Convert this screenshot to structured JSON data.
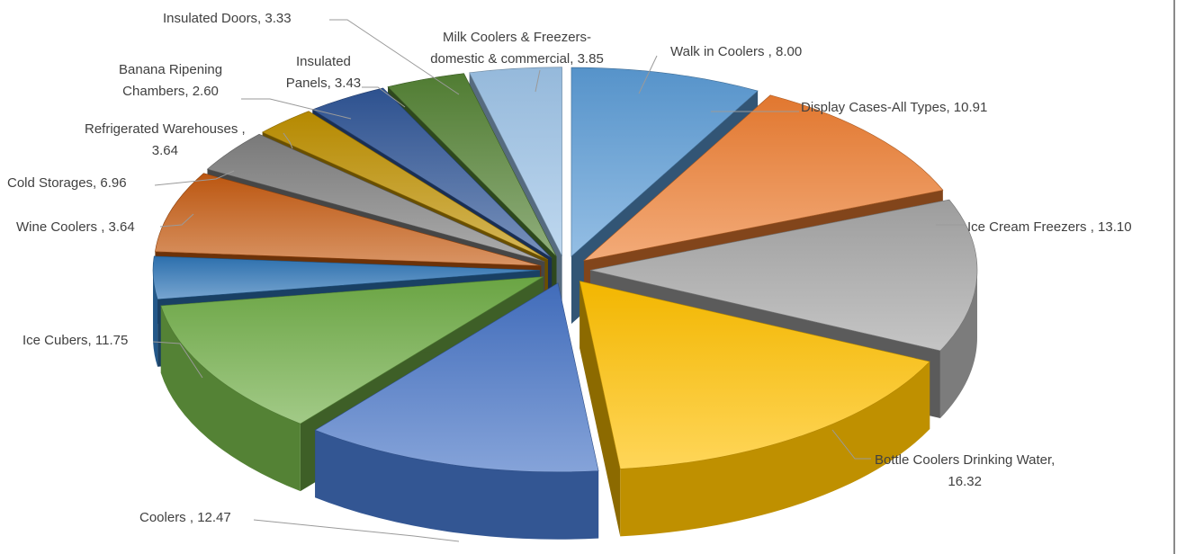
{
  "chart_data": {
    "type": "pie",
    "variant": "3d-exploded",
    "title": "",
    "legend": "none",
    "slices": [
      {
        "category": "Walk in Coolers  ",
        "value": 8.0,
        "label_lines": [
          "Walk in Coolers  , 8.00"
        ],
        "color": "#5B9BD5"
      },
      {
        "category": "Display Cases-All Types",
        "value": 10.91,
        "label_lines": [
          "Display Cases-All Types, 10.91"
        ],
        "color": "#ED7D31"
      },
      {
        "category": "Ice Cream Freezers  ",
        "value": 13.1,
        "label_lines": [
          "Ice Cream Freezers  , 13.10"
        ],
        "color": "#A5A5A5"
      },
      {
        "category": "Bottle Coolers Drinking Water",
        "value": 16.32,
        "label_lines": [
          "Bottle Coolers Drinking Water,",
          "16.32"
        ],
        "color": "#FFC000"
      },
      {
        "category": "Coolers  ",
        "value": 12.47,
        "label_lines": [
          "Coolers  , 12.47"
        ],
        "color": "#4472C4"
      },
      {
        "category": "Ice Cubers",
        "value": 11.75,
        "label_lines": [
          "Ice Cubers, 11.75"
        ],
        "color": "#70AD47"
      },
      {
        "category": "Wine Coolers  ",
        "value": 3.64,
        "label_lines": [
          "Wine Coolers  , 3.64"
        ],
        "color": "#2E75B6"
      },
      {
        "category": "Cold Storages",
        "value": 6.96,
        "label_lines": [
          "Cold Storages, 6.96"
        ],
        "color": "#C55A11"
      },
      {
        "category": "Refrigerated Warehouses  ",
        "value": 3.64,
        "label_lines": [
          "Refrigerated Warehouses  ,",
          "3.64"
        ],
        "color": "#7F7F7F"
      },
      {
        "category": "Banana Ripening Chambers",
        "value": 2.6,
        "label_lines": [
          "Banana Ripening",
          "Chambers, 2.60"
        ],
        "color": "#BF9000"
      },
      {
        "category": "Insulated Panels",
        "value": 3.43,
        "label_lines": [
          "Insulated",
          "Panels, 3.43"
        ],
        "color": "#2F5597"
      },
      {
        "category": "Insulated Doors",
        "value": 3.33,
        "label_lines": [
          "Insulated Doors, 3.33"
        ],
        "color": "#548235"
      },
      {
        "category": "Milk Coolers & Freezers-domestic & commercial",
        "value": 3.85,
        "label_lines": [
          "Milk Coolers & Freezers-",
          "domestic & commercial, 3.85"
        ],
        "color": "#9DC3E6"
      }
    ]
  }
}
